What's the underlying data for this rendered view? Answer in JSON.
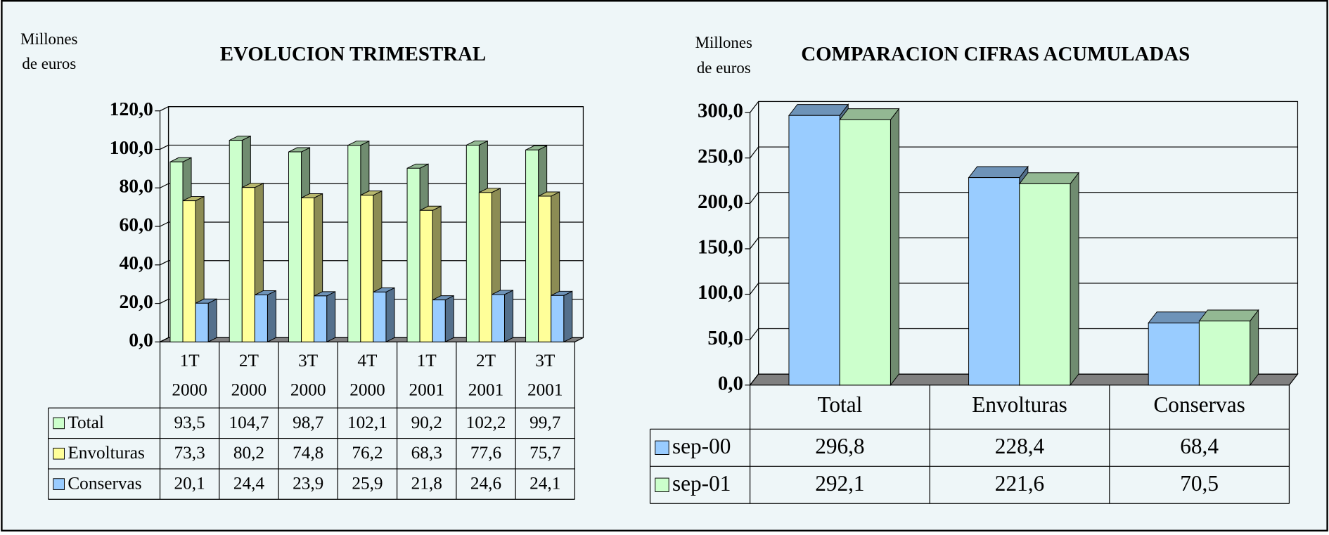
{
  "chart_data": [
    {
      "type": "bar",
      "title": "EVOLUCION TRIMESTRAL",
      "ylabel": [
        "Millones",
        "de euros"
      ],
      "categories": [
        [
          "1T",
          "2000"
        ],
        [
          "2T",
          "2000"
        ],
        [
          "3T",
          "2000"
        ],
        [
          "4T",
          "2000"
        ],
        [
          "1T",
          "2001"
        ],
        [
          "2T",
          "2001"
        ],
        [
          "3T",
          "2001"
        ]
      ],
      "series": [
        {
          "name": "Total",
          "color": "#ccffcc",
          "values": [
            93.5,
            104.7,
            98.7,
            102.1,
            90.2,
            102.2,
            99.7
          ],
          "value_labels": [
            "93,5",
            "104,7",
            "98,7",
            "102,1",
            "90,2",
            "102,2",
            "99,7"
          ]
        },
        {
          "name": "Envolturas",
          "color": "#ffff99",
          "values": [
            73.3,
            80.2,
            74.8,
            76.2,
            68.3,
            77.6,
            75.7
          ],
          "value_labels": [
            "73,3",
            "80,2",
            "74,8",
            "76,2",
            "68,3",
            "77,6",
            "75,7"
          ]
        },
        {
          "name": "Conservas",
          "color": "#99ccff",
          "values": [
            20.1,
            24.4,
            23.9,
            25.9,
            21.8,
            24.6,
            24.1
          ],
          "value_labels": [
            "20,1",
            "24,4",
            "23,9",
            "25,9",
            "21,8",
            "24,6",
            "24,1"
          ]
        }
      ],
      "ylim": [
        0,
        120
      ],
      "yticks": [
        {
          "value": 0,
          "label": "0,0"
        },
        {
          "value": 20,
          "label": "20,0"
        },
        {
          "value": 40,
          "label": "40,0"
        },
        {
          "value": 60,
          "label": "60,0"
        },
        {
          "value": 80,
          "label": "80,0"
        },
        {
          "value": 100,
          "label": "100,0"
        },
        {
          "value": 120,
          "label": "120,0"
        }
      ],
      "grid": true
    },
    {
      "type": "bar",
      "title": "COMPARACION CIFRAS ACUMULADAS",
      "ylabel": [
        "Millones",
        "de euros"
      ],
      "categories": [
        "Total",
        "Envolturas",
        "Conservas"
      ],
      "series": [
        {
          "name": "sep-00",
          "color": "#99ccff",
          "values": [
            296.8,
            228.4,
            68.4
          ],
          "value_labels": [
            "296,8",
            "228,4",
            "68,4"
          ]
        },
        {
          "name": "sep-01",
          "color": "#ccffcc",
          "values": [
            292.1,
            221.6,
            70.5
          ],
          "value_labels": [
            "292,1",
            "221,6",
            "70,5"
          ]
        }
      ],
      "ylim": [
        0,
        300
      ],
      "yticks": [
        {
          "value": 0,
          "label": "0,0"
        },
        {
          "value": 50,
          "label": "50,0"
        },
        {
          "value": 100,
          "label": "100,0"
        },
        {
          "value": 150,
          "label": "150,0"
        },
        {
          "value": 200,
          "label": "200,0"
        },
        {
          "value": 250,
          "label": "250,0"
        },
        {
          "value": 300,
          "label": "300,0"
        }
      ],
      "grid": true
    }
  ]
}
